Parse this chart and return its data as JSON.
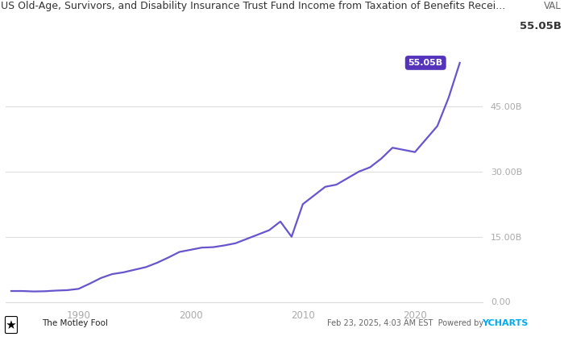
{
  "title": "US Old-Age, Survivors, and Disability Insurance Trust Fund Income from Taxation of Benefits Recei...",
  "val_label": "VAL",
  "val_value": "55.05B",
  "line_color": "#6655cc",
  "annotation_bg": "#5533bb",
  "annotation_text": "55.05B",
  "annotation_text_color": "#ffffff",
  "ytick_values": [
    0,
    15000000000,
    30000000000,
    45000000000
  ],
  "ylim": [
    0,
    58000000000
  ],
  "xlim": [
    1983.5,
    2026
  ],
  "background_color": "#ffffff",
  "plot_bg_color": "#ffffff",
  "grid_color": "#dddddd",
  "title_color": "#333333",
  "tick_color": "#aaaaaa",
  "footer_date": "Feb 23, 2025, 4:03 AM EST  Powered by ",
  "footer_ycharts": "YCHARTS",
  "ycharts_color": "#00aaee",
  "x_years": [
    1984,
    1985,
    1986,
    1987,
    1988,
    1989,
    1990,
    1991,
    1992,
    1993,
    1994,
    1995,
    1996,
    1997,
    1998,
    1999,
    2000,
    2001,
    2002,
    2003,
    2004,
    2005,
    2006,
    2007,
    2008,
    2009,
    2010,
    2011,
    2012,
    2013,
    2014,
    2015,
    2016,
    2017,
    2018,
    2019,
    2020,
    2021,
    2022,
    2023,
    2024
  ],
  "y_values": [
    2500000000,
    2500000000,
    2400000000,
    2450000000,
    2600000000,
    2700000000,
    3000000000,
    4200000000,
    5500000000,
    6400000000,
    6800000000,
    7400000000,
    8000000000,
    9000000000,
    10200000000,
    11500000000,
    12000000000,
    12500000000,
    12600000000,
    13000000000,
    13500000000,
    14500000000,
    15500000000,
    16500000000,
    18500000000,
    15000000000,
    22500000000,
    24500000000,
    26500000000,
    27000000000,
    28500000000,
    30000000000,
    31000000000,
    33000000000,
    35500000000,
    35000000000,
    34500000000,
    37500000000,
    40500000000,
    47000000000,
    55050000000
  ]
}
